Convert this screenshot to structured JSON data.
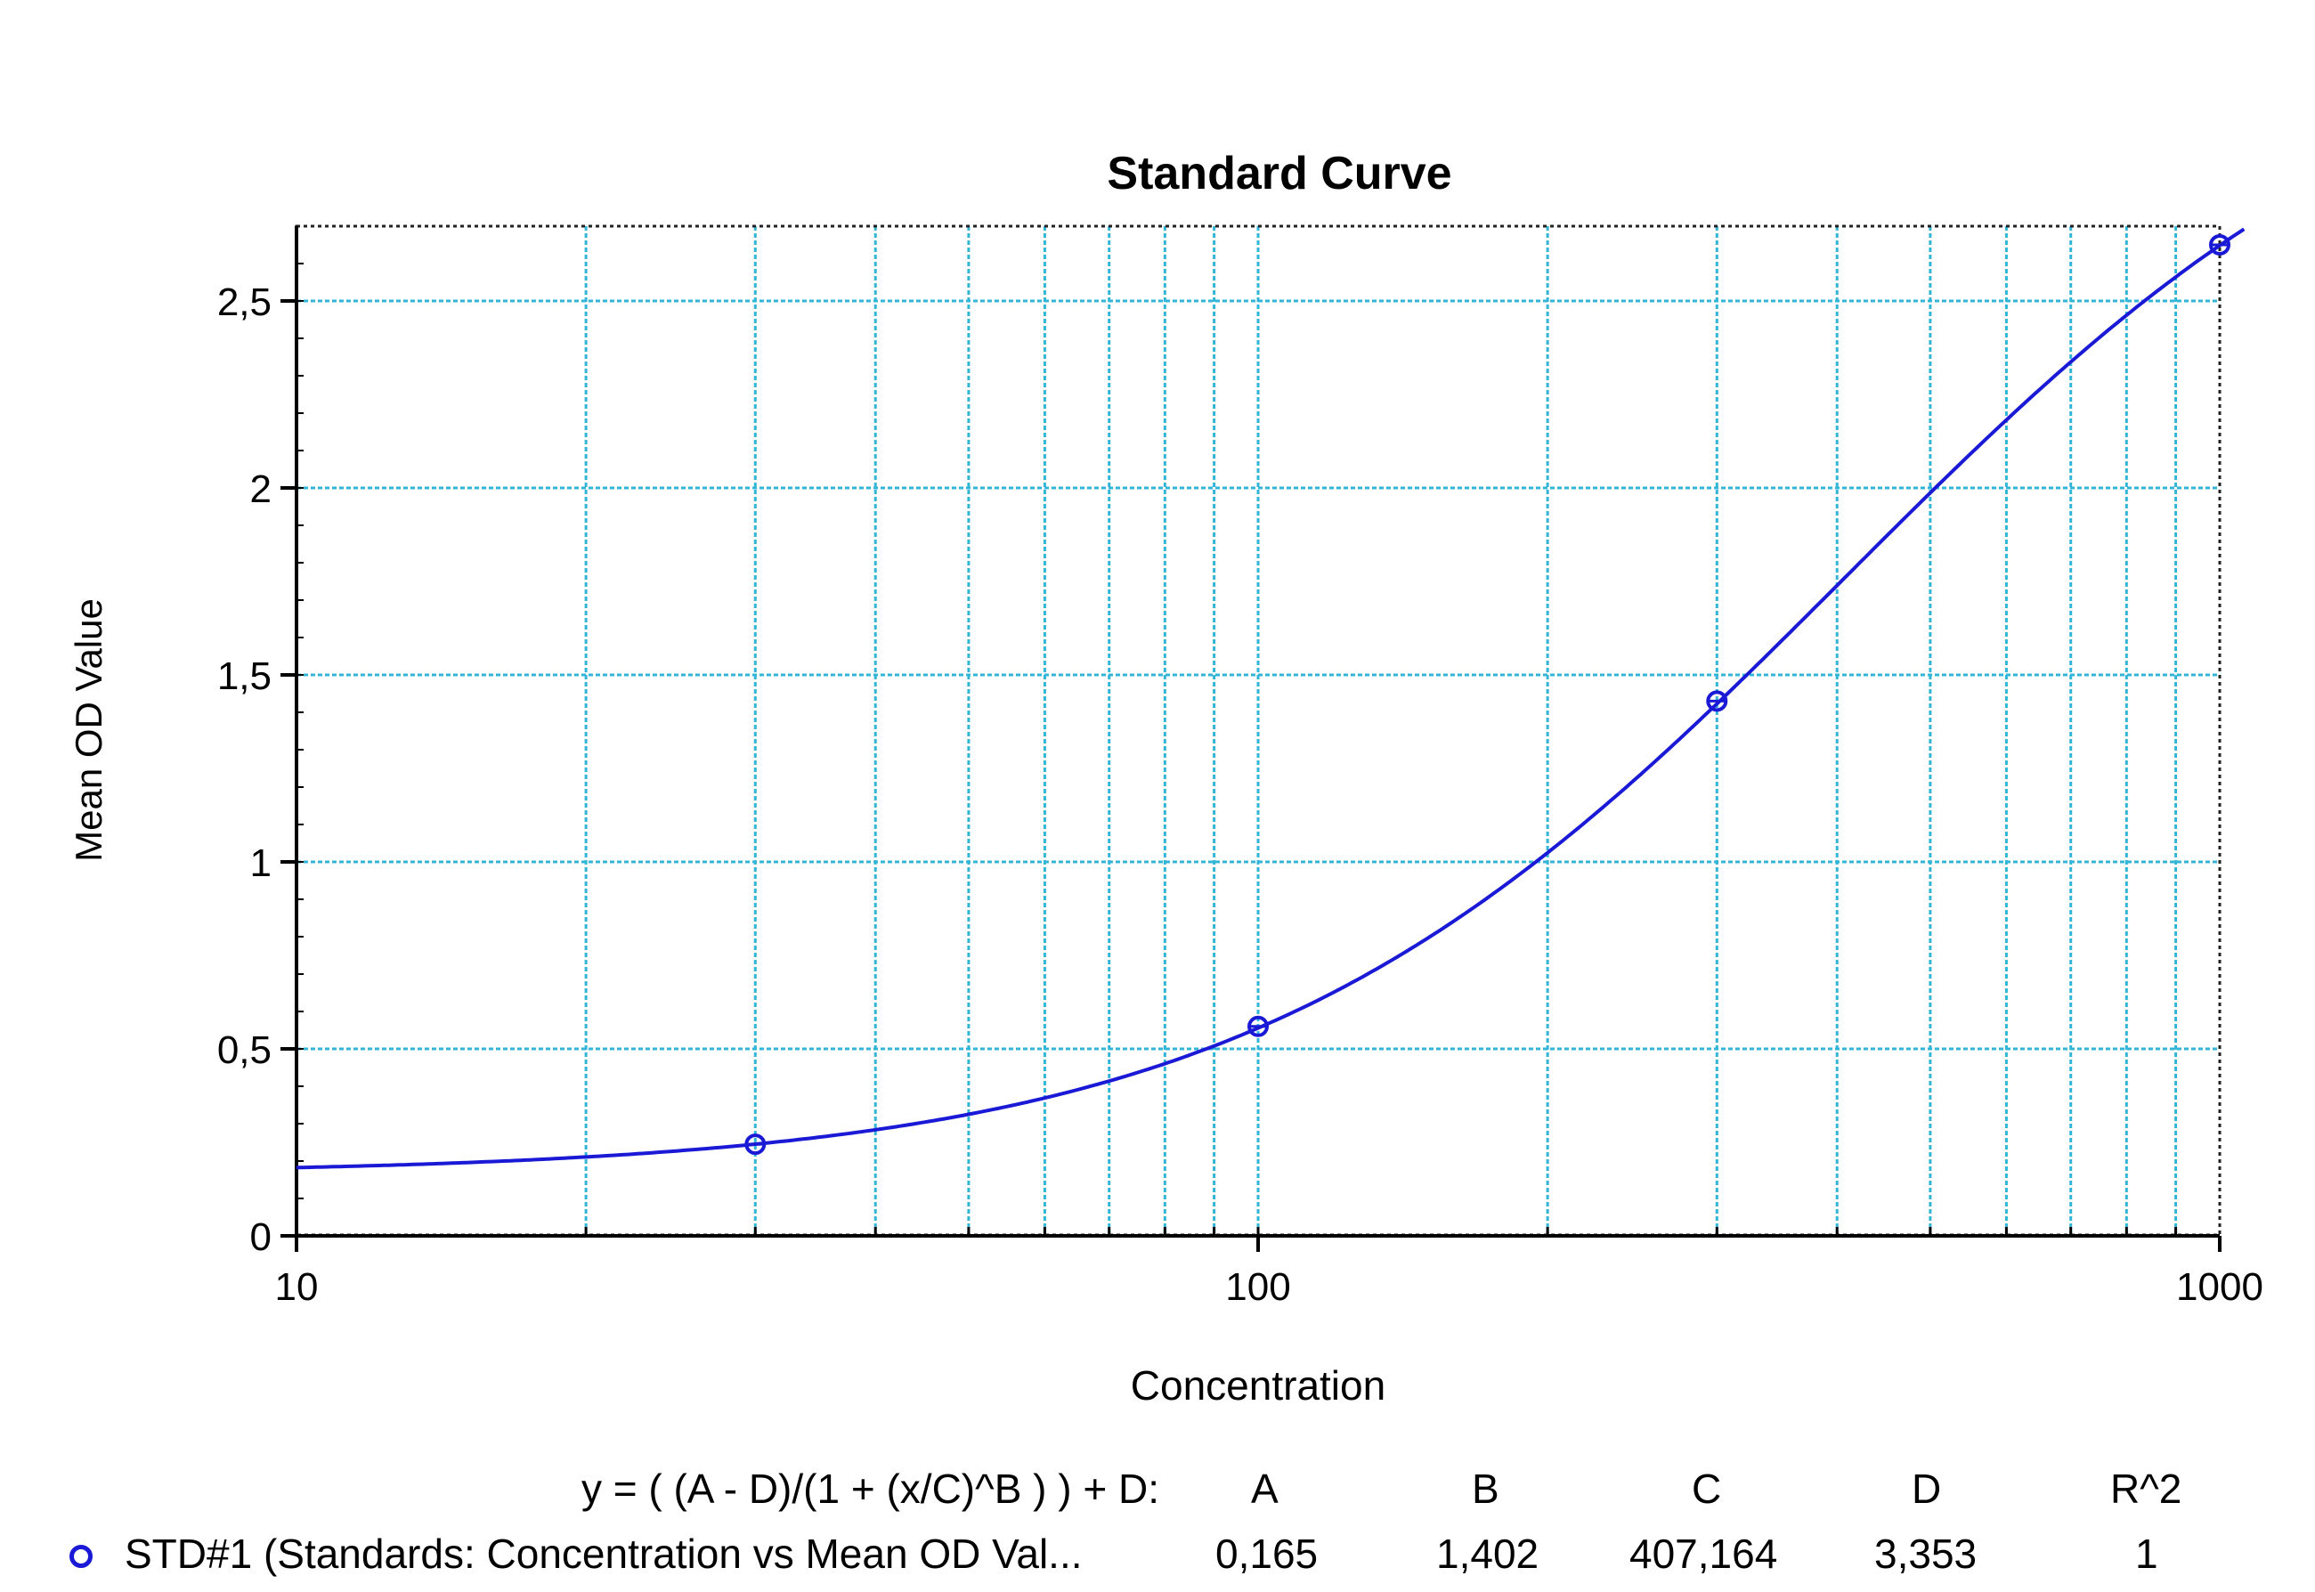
{
  "chart_data": {
    "type": "scatter",
    "title": "Standard Curve",
    "xlabel": "Concentration",
    "ylabel": "Mean OD Value",
    "x_scale": "log",
    "xlim": [
      10,
      1000
    ],
    "ylim": [
      0,
      2.7
    ],
    "x_ticks": [
      "10",
      "100",
      "1000"
    ],
    "y_ticks": [
      "0",
      "0,5",
      "1",
      "1,5",
      "2",
      "2,5"
    ],
    "grid": true,
    "series": [
      {
        "name": "STD#1 (Standards: Concentration vs Mean OD Val...",
        "x": [
          30,
          100,
          300,
          1000
        ],
        "y": [
          0.245,
          0.56,
          1.43,
          2.65
        ]
      }
    ],
    "fit": {
      "equation": "y = ( (A - D)/(1 + (x/C)^B ) ) + D:",
      "headers": [
        "A",
        "B",
        "C",
        "D",
        "R^2"
      ],
      "values": [
        "0,165",
        "1,402",
        "407,164",
        "3,353",
        "1"
      ],
      "A": 0.165,
      "B": 1.402,
      "C": 407.164,
      "D": 3.353
    },
    "colors": {
      "series": "#1a1ad6",
      "grid": "#33b5d8"
    }
  }
}
